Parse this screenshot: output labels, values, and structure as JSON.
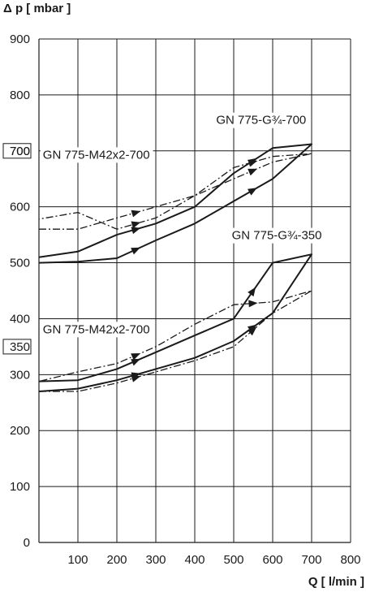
{
  "chart_data": {
    "type": "line",
    "xlabel": "Q [ l/min ]",
    "ylabel": "Δ p [ mbar ]",
    "xlim": [
      0,
      800
    ],
    "ylim": [
      0,
      900
    ],
    "x_ticks": [
      100,
      200,
      300,
      400,
      500,
      600,
      700,
      800
    ],
    "y_ticks": [
      0,
      100,
      200,
      300,
      400,
      500,
      600,
      700,
      800,
      900
    ],
    "boxed_y_ticks": [
      700,
      350
    ],
    "grid": true,
    "colors": {
      "line": "#1a1a1a",
      "grid": "#1a1a1a",
      "background": "#ffffff"
    },
    "series": [
      {
        "name": "GN 775-G¾-700",
        "style": "solid",
        "x": [
          0,
          100,
          200,
          300,
          400,
          500,
          600,
          700,
          700,
          600,
          500,
          400,
          300,
          200,
          100,
          0
        ],
        "y": [
          500,
          502,
          508,
          540,
          570,
          610,
          650,
          712,
          712,
          705,
          660,
          600,
          570,
          550,
          520,
          510
        ]
      },
      {
        "name": "GN 775-M42x2-700",
        "style": "dash-dot",
        "x": [
          0,
          100,
          200,
          300,
          400,
          500,
          600,
          700,
          700,
          600,
          500,
          400,
          300,
          200,
          100,
          0
        ],
        "y": [
          560,
          560,
          580,
          600,
          620,
          650,
          680,
          695,
          695,
          690,
          670,
          620,
          580,
          560,
          590,
          578
        ]
      },
      {
        "name": "GN 775-G¾-350",
        "style": "solid",
        "x": [
          0,
          100,
          200,
          300,
          400,
          500,
          600,
          700,
          700,
          600,
          500,
          400,
          300,
          200,
          100,
          0
        ],
        "y": [
          270,
          275,
          290,
          310,
          330,
          360,
          410,
          515,
          515,
          500,
          400,
          370,
          340,
          310,
          290,
          288
        ]
      },
      {
        "name": "GN 775-M42x2-700",
        "style": "dash-dot",
        "x": [
          0,
          100,
          200,
          300,
          400,
          500,
          600,
          700,
          700,
          600,
          500,
          400,
          300,
          200,
          100,
          0
        ],
        "y": [
          270,
          270,
          285,
          305,
          325,
          350,
          410,
          450,
          450,
          430,
          425,
          390,
          350,
          320,
          305,
          288
        ]
      }
    ],
    "annotations": [
      {
        "text": "GN 775-G¾-700",
        "x": 455,
        "y": 748
      },
      {
        "text": "GN 775-M42x2-700",
        "x": 10,
        "y": 686
      },
      {
        "text": "GN 775-G¾-350",
        "x": 495,
        "y": 542
      },
      {
        "text": "GN 775-M42x2-700",
        "x": 10,
        "y": 374
      }
    ]
  }
}
